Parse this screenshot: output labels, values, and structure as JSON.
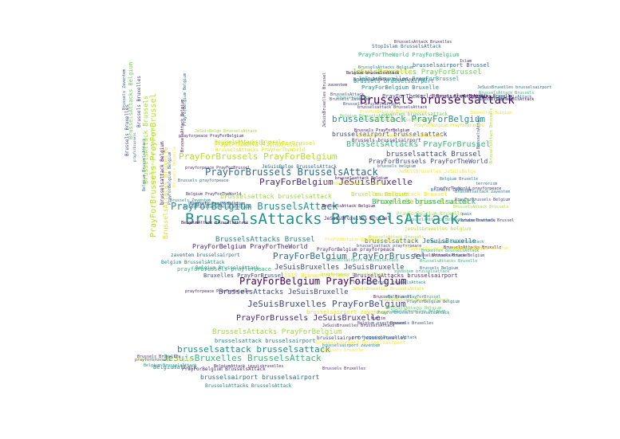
{
  "words": [
    {
      "t": "BrusselsAttacks BrusselsAttack",
      "c": "#21918c"
    },
    {
      "t": "Brussels brusselsattack",
      "c": "#440154"
    },
    {
      "t": "PrayForBelgium BrusselsAttack",
      "c": "#21918c"
    },
    {
      "t": "PrayForBrussels BrusselsAttack",
      "c": "#31688e"
    },
    {
      "t": "PrayForBrussels PrayForBelgium",
      "c": "#b5de2b"
    },
    {
      "t": "PrayForBelgium JeSuisBruxelle",
      "c": "#482878"
    },
    {
      "t": "PrayForBelgium PrayForBelgium",
      "c": "#440154"
    },
    {
      "t": "PrayForBelgium PrayForBrussel",
      "c": "#31688e"
    },
    {
      "t": "brusselsattack PrayForBelgium",
      "c": "#21918c"
    },
    {
      "t": "brusselsattack brusselsattack",
      "c": "#21918c"
    },
    {
      "t": "JeSuisBruxelles BrusselsAttack",
      "c": "#35b779"
    },
    {
      "t": "JeSuisBruxelles PrayForBelgium",
      "c": "#3e4989"
    },
    {
      "t": "PrayForBrussels JeSuisBruxelle",
      "c": "#482878"
    },
    {
      "t": "BrusselsAttacks PrayForBrussel",
      "c": "#35b779"
    },
    {
      "t": "BrusselsAttacks PrayForBelgium",
      "c": "#a0da39"
    },
    {
      "t": "BrusselsAttacks JeSuisBruxelle",
      "c": "#3e4989"
    },
    {
      "t": "JeSuisBruxelles PrayForBrussel",
      "c": "#6ece58"
    },
    {
      "t": "JeSuisBruxelles JeSuisBruxelle",
      "c": "#3e4989"
    },
    {
      "t": "PrayForBelgium Brussel",
      "c": "#a0da39"
    },
    {
      "t": "brusselsattack Brussel",
      "c": "#3e4989"
    },
    {
      "t": "Bruxelles brusselsattack",
      "c": "#35b779"
    },
    {
      "t": "brusselsairport brusselsattack",
      "c": "#3e4989"
    },
    {
      "t": "brusselsairport brusselsairport",
      "c": "#31688e"
    },
    {
      "t": "BrusselsAttacks Brussel",
      "c": "#26828e"
    },
    {
      "t": "brusselsattack JeSuisBruxelle",
      "c": "#31688e"
    },
    {
      "t": "PrayForBelgium PrayForTheWorld",
      "c": "#482878"
    },
    {
      "t": "PrayForBrussels PrayForTheWorld",
      "c": "#3e4989"
    },
    {
      "t": "brusselsattack brusselsairport",
      "c": "#26828e"
    },
    {
      "t": "PrayForTheWorld PrayForBrussel",
      "c": "#dde318"
    },
    {
      "t": "BrusselsAttacks PrayForTheWorld",
      "c": "#dde318"
    },
    {
      "t": "JeSuisBelge BrusselsAttack",
      "c": "#31688e"
    },
    {
      "t": "prayforpeace PrayForBrussel",
      "c": "#482878"
    },
    {
      "t": "brusselsattack brusselsattack",
      "c": "#a0da39"
    },
    {
      "t": "brusselsairport brusselsairport",
      "c": "#fde725"
    },
    {
      "t": "prayforbrussels prayforpeace",
      "c": "#35b779"
    },
    {
      "t": "Bruxelles PrayForBrussel",
      "c": "#3e4989"
    },
    {
      "t": "ISIS BrusselsAttack",
      "c": "#fde725"
    },
    {
      "t": "Brussels brusselsairport",
      "c": "#21918c"
    },
    {
      "t": "BrusselsAttacks brusselsairport",
      "c": "#482878"
    },
    {
      "t": "JeSuisBruxelles JeSuisBelge",
      "c": "#fde725"
    },
    {
      "t": "brusselsairport jesuisbruxelles",
      "c": "#3e4989"
    },
    {
      "t": "PrayForBelgium prayforpeace",
      "c": "#482878"
    },
    {
      "t": "zaventem brusselsairport",
      "c": "#31688e"
    },
    {
      "t": "Belgium BrusselsAttack",
      "c": "#26828e"
    },
    {
      "t": "brusselsattack Brussel",
      "c": "#fde725"
    },
    {
      "t": "Bruxelles Belgium",
      "c": "#b5de2b"
    },
    {
      "t": "brusselsairport zaventem",
      "c": "#dde318"
    },
    {
      "t": "Belgiumattack",
      "c": "#21918c"
    },
    {
      "t": "prayforpeace PrayForBelgium",
      "c": "#482878"
    },
    {
      "t": "PrayForTheWorld PrayForBelgium",
      "c": "#35b779"
    },
    {
      "t": "StopIslam BrusselsAttack",
      "c": "#31688e"
    },
    {
      "t": "brusselsairport Brussel",
      "c": "#31688e"
    },
    {
      "t": "JeSuisBruxelles PrayForBrussel",
      "c": "#1f9e89"
    },
    {
      "t": "Brussels brusselsairport",
      "c": "#3e4989"
    },
    {
      "t": "PrayForBelgium Bruxelle",
      "c": "#26828e"
    },
    {
      "t": "PrayForTheWorld BrusselsAttack",
      "c": "#3e4989"
    },
    {
      "t": "BrusselsAttacks Brussel",
      "c": "#b5de2b"
    },
    {
      "t": "PrayForTheWorld PrayForBrussel",
      "c": "#dde318"
    },
    {
      "t": "BrusselsAttack Belgium",
      "c": "#440154"
    },
    {
      "t": "JeSuisBruxelles Brussel",
      "c": "#482878"
    },
    {
      "t": "brusselsattack PrayForBelgium",
      "c": "#fde725"
    },
    {
      "t": "zaventem brusselsattack",
      "c": "#6ece58"
    },
    {
      "t": "Brussels brusselsairport",
      "c": "#482878"
    },
    {
      "t": "brusselsattack Belgium",
      "c": "#440154"
    },
    {
      "t": "brusselsairport zaventem",
      "c": "#26828e"
    },
    {
      "t": "Brussels prayforpeace",
      "c": "#31688e"
    },
    {
      "t": "jesuisbruxelles belgium",
      "c": "#b5de2b"
    },
    {
      "t": "PrayForBelgium Bruxelle",
      "c": "#a0da39"
    },
    {
      "t": "Belgium BrusselsAttack",
      "c": "#21918c"
    },
    {
      "t": "prayforpeace PrayForBelgium",
      "c": "#482878"
    },
    {
      "t": "BrusselsAttacks BrusselsAttack",
      "c": "#26828e"
    },
    {
      "t": "zaventem brusselsattack",
      "c": "#35b779"
    },
    {
      "t": "PrayForBelgium BrusselsAttack",
      "c": "#482878"
    },
    {
      "t": "PrayForBrussels Belgium",
      "c": "#21918c"
    },
    {
      "t": "BrusselsAttacks Bruxelle",
      "c": "#dde318"
    },
    {
      "t": "brusselsairport BrusselsAttack",
      "c": "#35b779"
    },
    {
      "t": "prayforpeace BrusselsAttack",
      "c": "#a0da39"
    },
    {
      "t": "JeSuisBruxelles BrusselsAttack",
      "c": "#dde318"
    },
    {
      "t": "brusselsattack prayforpeace",
      "c": "#3e4989"
    },
    {
      "t": "brusselsairport BrusselsAttack",
      "c": "#26828e"
    },
    {
      "t": "BrusselsAttacks brusselsairport",
      "c": "#482878"
    },
    {
      "t": "PrayForBelgium PrayForBrussel",
      "c": "#fde725"
    },
    {
      "t": "BrusselsAttacks Belgium",
      "c": "#6ece58"
    },
    {
      "t": "prayforpeace BrusselsAttack",
      "c": "#31688e"
    },
    {
      "t": "JeSuisBruxelles BrusselsAttack",
      "c": "#482878"
    },
    {
      "t": "Brussels Belgium",
      "c": "#31688e"
    },
    {
      "t": "BrusselsAttacks Bruxelle",
      "c": "#440154"
    },
    {
      "t": "JeSuisBelge BrusselsAttack",
      "c": "#a0da39"
    },
    {
      "t": "BrusselsAttacks Belgium",
      "c": "#fde725"
    },
    {
      "t": "PrayForBrussels Belgium",
      "c": "#3e4989"
    },
    {
      "t": "BrusselsAttack Brussels",
      "c": "#a0da39"
    },
    {
      "t": "Brussels Bruxelles",
      "c": "#3e4989"
    },
    {
      "t": "Brussels Zaventem",
      "c": "#31688e"
    },
    {
      "t": "Brussels Bruxelles",
      "c": "#482878"
    },
    {
      "t": "PrayForBrussels Belgium",
      "c": "#fde725"
    },
    {
      "t": "Belgium BrusselsAttack",
      "c": "#21918c"
    },
    {
      "t": "prayforbrussels",
      "c": "#31688e"
    },
    {
      "t": "Islam",
      "c": "#482878"
    },
    {
      "t": "zaventem",
      "c": "#482878"
    },
    {
      "t": "paix",
      "c": "#31688e"
    },
    {
      "t": "Bruxelles Bruxelle",
      "c": "#440154"
    },
    {
      "t": "Brussels Brussel",
      "c": "#440154"
    },
    {
      "t": "Belgium BrusselsAttack",
      "c": "#21918c"
    },
    {
      "t": "BrusselsAttacks Brussel",
      "c": "#482878"
    },
    {
      "t": "brussels belgium",
      "c": "#31688e"
    },
    {
      "t": "Bruxelles BrusselsAttack",
      "c": "#35b779"
    },
    {
      "t": "Belgium Bruxelle",
      "c": "#26828e"
    },
    {
      "t": "brusselsattack Brussel",
      "c": "#482878"
    },
    {
      "t": "BrusselsAttacks Bruxelle",
      "c": "#35b779"
    },
    {
      "t": "BrusselsAttack Belgium",
      "c": "#3e4989"
    },
    {
      "t": "youtube Brussels",
      "c": "#31688e"
    },
    {
      "t": "PrayForBelgium Bruxelle",
      "c": "#fde725"
    },
    {
      "t": "brusselsattack BelgiumAttack",
      "c": "#31688e"
    },
    {
      "t": "BelgiumAttack BrusselsAttack",
      "c": "#440154"
    },
    {
      "t": "Brussels Zaventem",
      "c": "#26828e"
    },
    {
      "t": "Belgium PrayForTheWorld",
      "c": "#482878"
    },
    {
      "t": "Brussels PrayForBelgium",
      "c": "#3e4989"
    },
    {
      "t": "terrorism",
      "c": "#31688e"
    },
    {
      "t": "PrayForTheWorld prayforpeace",
      "c": "#482878"
    },
    {
      "t": "brusselsattack zaventem",
      "c": "#26828e"
    },
    {
      "t": "Belgium PrayForBrussel",
      "c": "#21918c"
    },
    {
      "t": "Muslim",
      "c": "#482878"
    },
    {
      "t": "PrayForBelgium Belgium",
      "c": "#31688e"
    },
    {
      "t": "JeSuisBruxelles Belgium",
      "c": "#35b779"
    },
    {
      "t": "Belgium prayforpeace",
      "c": "#3e4989"
    },
    {
      "t": "PrayForBrussels brusselsattack",
      "c": "#26828e"
    },
    {
      "t": "BrusselsAttack",
      "c": "#3e4989"
    },
    {
      "t": "brusselsattack",
      "c": "#35b779"
    },
    {
      "t": "BrusselsAttacks Belgium",
      "c": "#26828e"
    },
    {
      "t": "PrayForBelgium Belgium",
      "c": "#fde725"
    },
    {
      "t": "JeSuisBruxelles brusselsairport",
      "c": "#31688e"
    },
    {
      "t": "Brussels BrusselsAttack",
      "c": "#440154"
    },
    {
      "t": "Belgium BrusselsAttack",
      "c": "#26828e"
    },
    {
      "t": "BrusselsAttack Brussels",
      "c": "#35b779"
    },
    {
      "t": "Brussels Bruxelle",
      "c": "#fde725"
    },
    {
      "t": "Brussels Bruxelles",
      "c": "#482878"
    },
    {
      "t": "BelgiumAttack jesuisbruxelles",
      "c": "#482878"
    },
    {
      "t": "PrayForBelgium BelgiumAttack",
      "c": "#fde725"
    },
    {
      "t": "Belgium BrusselsAttack",
      "c": "#6ece58"
    },
    {
      "t": "Brussels PrayForBelgium",
      "c": "#440154"
    },
    {
      "t": "brusselsattack jesuisbruxelles",
      "c": "#a0da39"
    },
    {
      "t": "Belgium brusselsattack",
      "c": "#440154"
    },
    {
      "t": "BrusselsAttack Bruxelles",
      "c": "#482878"
    },
    {
      "t": "Brussels Zaventem",
      "c": "#3e4989"
    },
    {
      "t": "Brussels BrusselsAttack",
      "c": "#440154"
    },
    {
      "t": "Fr BrusselsAttack",
      "c": "#31688e"
    },
    {
      "t": "brusselsattack BrusselsAttack",
      "c": "#482878"
    },
    {
      "t": "Bruxelles Belgium",
      "c": "#fde725"
    },
    {
      "t": "brusselsattack Belgium",
      "c": "#fde725"
    },
    {
      "t": "BrusselsAttack Brussels",
      "c": "#b5de2b"
    },
    {
      "t": "PrayForBelgium PrayForBrussel",
      "c": "#dde318"
    },
    {
      "t": "PrayForBelgium BrusselsAttack",
      "c": "#b5de2b"
    },
    {
      "t": "BrusselsAttacks Belgium",
      "c": "#35b779"
    },
    {
      "t": "PrayForBelgium BelgiumAttack",
      "c": "#fde725"
    },
    {
      "t": "Brussels Bruxelles",
      "c": "#fde725"
    },
    {
      "t": "brusselsattack Bruxelle",
      "c": "#fde725"
    },
    {
      "t": "PrayForBelgium Bruxelle",
      "c": "#b5de2b"
    },
    {
      "t": "BrusselsAttack Belgium",
      "c": "#440154"
    },
    {
      "t": "JeSuisBruxelles Brussel",
      "c": "#482878"
    }
  ]
}
